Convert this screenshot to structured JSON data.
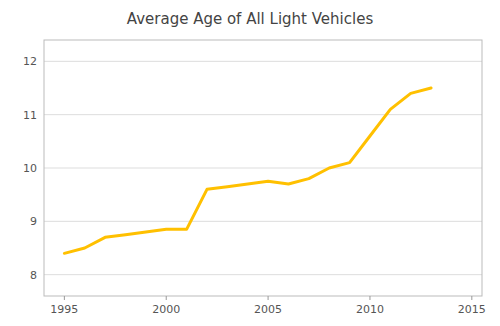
{
  "chart_data": {
    "type": "line",
    "title": "Average Age of All Light Vehicles",
    "x": [
      1995,
      1996,
      1997,
      1998,
      1999,
      2000,
      2001,
      2002,
      2003,
      2004,
      2005,
      2006,
      2007,
      2008,
      2009,
      2010,
      2011,
      2012,
      2013
    ],
    "values": [
      8.4,
      8.5,
      8.7,
      8.75,
      8.8,
      8.85,
      8.85,
      9.6,
      9.65,
      9.7,
      9.75,
      9.7,
      9.8,
      10.0,
      10.1,
      10.6,
      11.1,
      11.4,
      11.5
    ],
    "color": "#FFC000",
    "xlim": [
      1994,
      2015.5
    ],
    "ylim": [
      7.6,
      12.4
    ],
    "xticks": [
      1995,
      2000,
      2005,
      2010,
      2015
    ],
    "yticks": [
      8,
      9,
      10,
      11,
      12
    ],
    "grid": true
  }
}
